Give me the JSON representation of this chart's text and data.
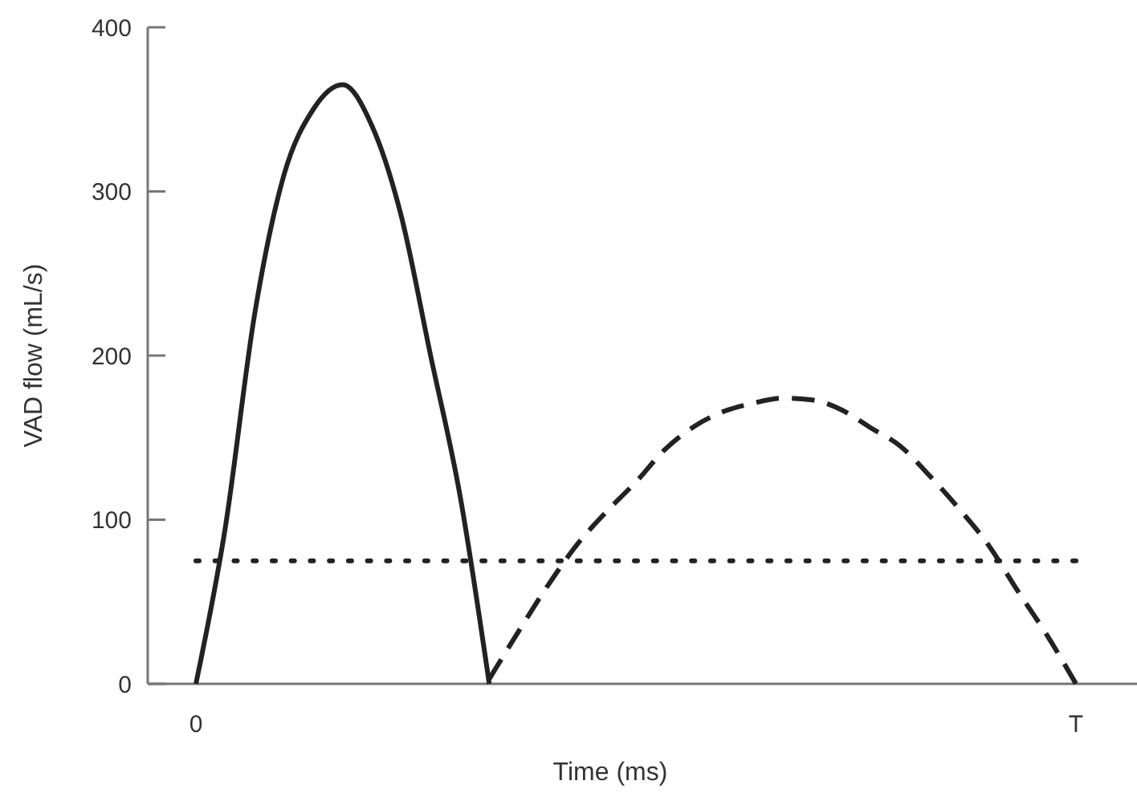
{
  "chart_data": {
    "type": "line",
    "xlabel": "Time (ms)",
    "ylabel": "VAD flow (mL/s)",
    "ylim": [
      0,
      400
    ],
    "yticks": [
      0,
      100,
      200,
      300,
      400
    ],
    "grid": false,
    "marker": "none",
    "categories": [
      "0",
      null,
      null,
      null,
      null,
      null,
      null,
      null,
      null,
      null,
      null,
      null,
      null,
      null,
      null,
      null,
      null,
      null,
      null,
      null,
      null,
      null,
      null,
      null,
      null,
      null,
      null,
      null,
      null,
      null,
      "T"
    ],
    "series": [
      {
        "color": "#222222",
        "line_style": "solid",
        "values": [
          0,
          95,
          225,
          310,
          350,
          365,
          340,
          285,
          200,
          115,
          0,
          null,
          null,
          null,
          null,
          null,
          null,
          null,
          null,
          null,
          null,
          null,
          null,
          null,
          null,
          null,
          null,
          null,
          null,
          null,
          null
        ]
      },
      {
        "color": "#222222",
        "line_style": "dashed",
        "values": [
          null,
          null,
          null,
          null,
          null,
          null,
          null,
          null,
          null,
          null,
          3,
          32,
          60,
          85,
          105,
          123,
          143,
          157,
          166,
          171,
          174,
          173,
          167,
          156,
          145,
          127,
          107,
          85,
          57,
          30,
          0
        ]
      },
      {
        "color": "#222222",
        "line_style": "dotted",
        "values": [
          75,
          75,
          75,
          75,
          75,
          75,
          75,
          75,
          75,
          75,
          75,
          75,
          75,
          75,
          75,
          75,
          75,
          75,
          75,
          75,
          75,
          75,
          75,
          75,
          75,
          75,
          75,
          75,
          75,
          75,
          75
        ]
      }
    ]
  }
}
